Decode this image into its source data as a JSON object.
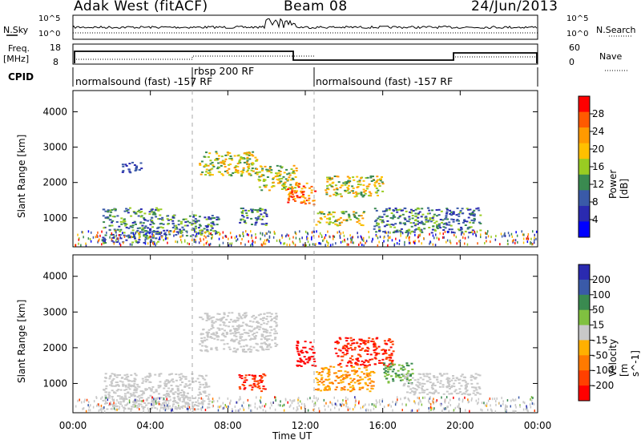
{
  "header": {
    "radar_name": "Adak West (fitACF)",
    "beam": "Beam 08",
    "date": "24/Jun/2013"
  },
  "top_panels": {
    "nsky_label": "N.Sky",
    "nsky_ticks": [
      "10^5",
      "10^0"
    ],
    "nsearch_label": "N.Search",
    "nsearch_ticks": [
      "10^5",
      "10^0"
    ],
    "freq_label_1": "Freq.",
    "freq_label_2": "[MHz]",
    "freq_ticks": [
      "18",
      "8"
    ],
    "nave_label": "Nave",
    "nave_ticks": [
      "60",
      "0"
    ],
    "cpid_label": "CPID",
    "cpid_segments": [
      "normalsound (fast) -157 RF",
      "rbsp 200 RF",
      "normalsound (fast) -157 RF"
    ]
  },
  "axes": {
    "xlabel": "Time UT",
    "xticks": [
      "00:00",
      "04:00",
      "08:00",
      "12:00",
      "16:00",
      "20:00",
      "00:00"
    ],
    "ylabel": "Slant Range [km]",
    "yticks": [
      "1000",
      "2000",
      "3000",
      "4000"
    ]
  },
  "chart_data": [
    {
      "type": "heatmap",
      "title": "",
      "xlabel": "Time UT",
      "ylabel": "Slant Range [km]",
      "xlim": [
        0,
        24
      ],
      "ylim": [
        180,
        4600
      ],
      "colorbar_label": "Power [dB]",
      "colorbar_ticks": [
        "28",
        "24",
        "20",
        "16",
        "12",
        "8",
        "4"
      ],
      "colorbar_colors": [
        "#ff0000",
        "#ff5a00",
        "#ff9a00",
        "#ffc000",
        "#99cc22",
        "#3a8a50",
        "#3a5aa8",
        "#2a2ab0",
        "#0000ff"
      ],
      "regions": [
        {
          "t0": 1.5,
          "t1": 4.5,
          "r0": 300,
          "r1": 1300,
          "level": "medium"
        },
        {
          "t0": 2.5,
          "t1": 3.5,
          "r0": 2300,
          "r1": 2600,
          "level": "low"
        },
        {
          "t0": 4.5,
          "t1": 7.5,
          "r0": 500,
          "r1": 1100,
          "level": "medium"
        },
        {
          "t0": 6.5,
          "t1": 9.5,
          "r0": 2200,
          "r1": 2900,
          "level": "high"
        },
        {
          "t0": 8.5,
          "t1": 10.0,
          "r0": 800,
          "r1": 1300,
          "level": "medium"
        },
        {
          "t0": 9.5,
          "t1": 11.5,
          "r0": 1800,
          "r1": 2500,
          "level": "high"
        },
        {
          "t0": 11.0,
          "t1": 12.5,
          "r0": 1400,
          "r1": 2000,
          "level": "very high"
        },
        {
          "t0": 12.5,
          "t1": 15.0,
          "r0": 800,
          "r1": 1200,
          "level": "high"
        },
        {
          "t0": 13.0,
          "t1": 16.0,
          "r0": 1600,
          "r1": 2200,
          "level": "high"
        },
        {
          "t0": 15.5,
          "t1": 21.0,
          "r0": 600,
          "r1": 1300,
          "level": "medium"
        }
      ]
    },
    {
      "type": "heatmap",
      "title": "",
      "xlabel": "Time UT",
      "ylabel": "Slant Range [km]",
      "xlim": [
        0,
        24
      ],
      "ylim": [
        180,
        4600
      ],
      "colorbar_label": "Velocity [m s^-1]",
      "colorbar_ticks": [
        "200",
        "100",
        "50",
        "15",
        "-15",
        "-50",
        "-100",
        "-200"
      ],
      "colorbar_colors": [
        "#2a2ab0",
        "#3a5aa8",
        "#3a8a50",
        "#80c040",
        "#c8c8c8",
        "#ffb000",
        "#ff7a00",
        "#ff4000",
        "#ff0000"
      ],
      "regions": [
        {
          "t0": 1.5,
          "t1": 7.0,
          "r0": 300,
          "r1": 1300,
          "velocity": "near zero"
        },
        {
          "t0": 6.5,
          "t1": 10.5,
          "r0": 1900,
          "r1": 3000,
          "velocity": "near zero"
        },
        {
          "t0": 8.5,
          "t1": 10.0,
          "r0": 800,
          "r1": 1300,
          "velocity": "-100 to -200"
        },
        {
          "t0": 11.5,
          "t1": 12.5,
          "r0": 1500,
          "r1": 2200,
          "velocity": "-200"
        },
        {
          "t0": 12.5,
          "t1": 15.5,
          "r0": 800,
          "r1": 1500,
          "velocity": "-50 to -100"
        },
        {
          "t0": 13.5,
          "t1": 16.5,
          "r0": 1500,
          "r1": 2300,
          "velocity": "-100 to -200"
        },
        {
          "t0": 16.0,
          "t1": 17.5,
          "r0": 1000,
          "r1": 1600,
          "velocity": "15 to 50"
        },
        {
          "t0": 17.0,
          "t1": 21.0,
          "r0": 700,
          "r1": 1300,
          "velocity": "near zero"
        }
      ]
    }
  ]
}
